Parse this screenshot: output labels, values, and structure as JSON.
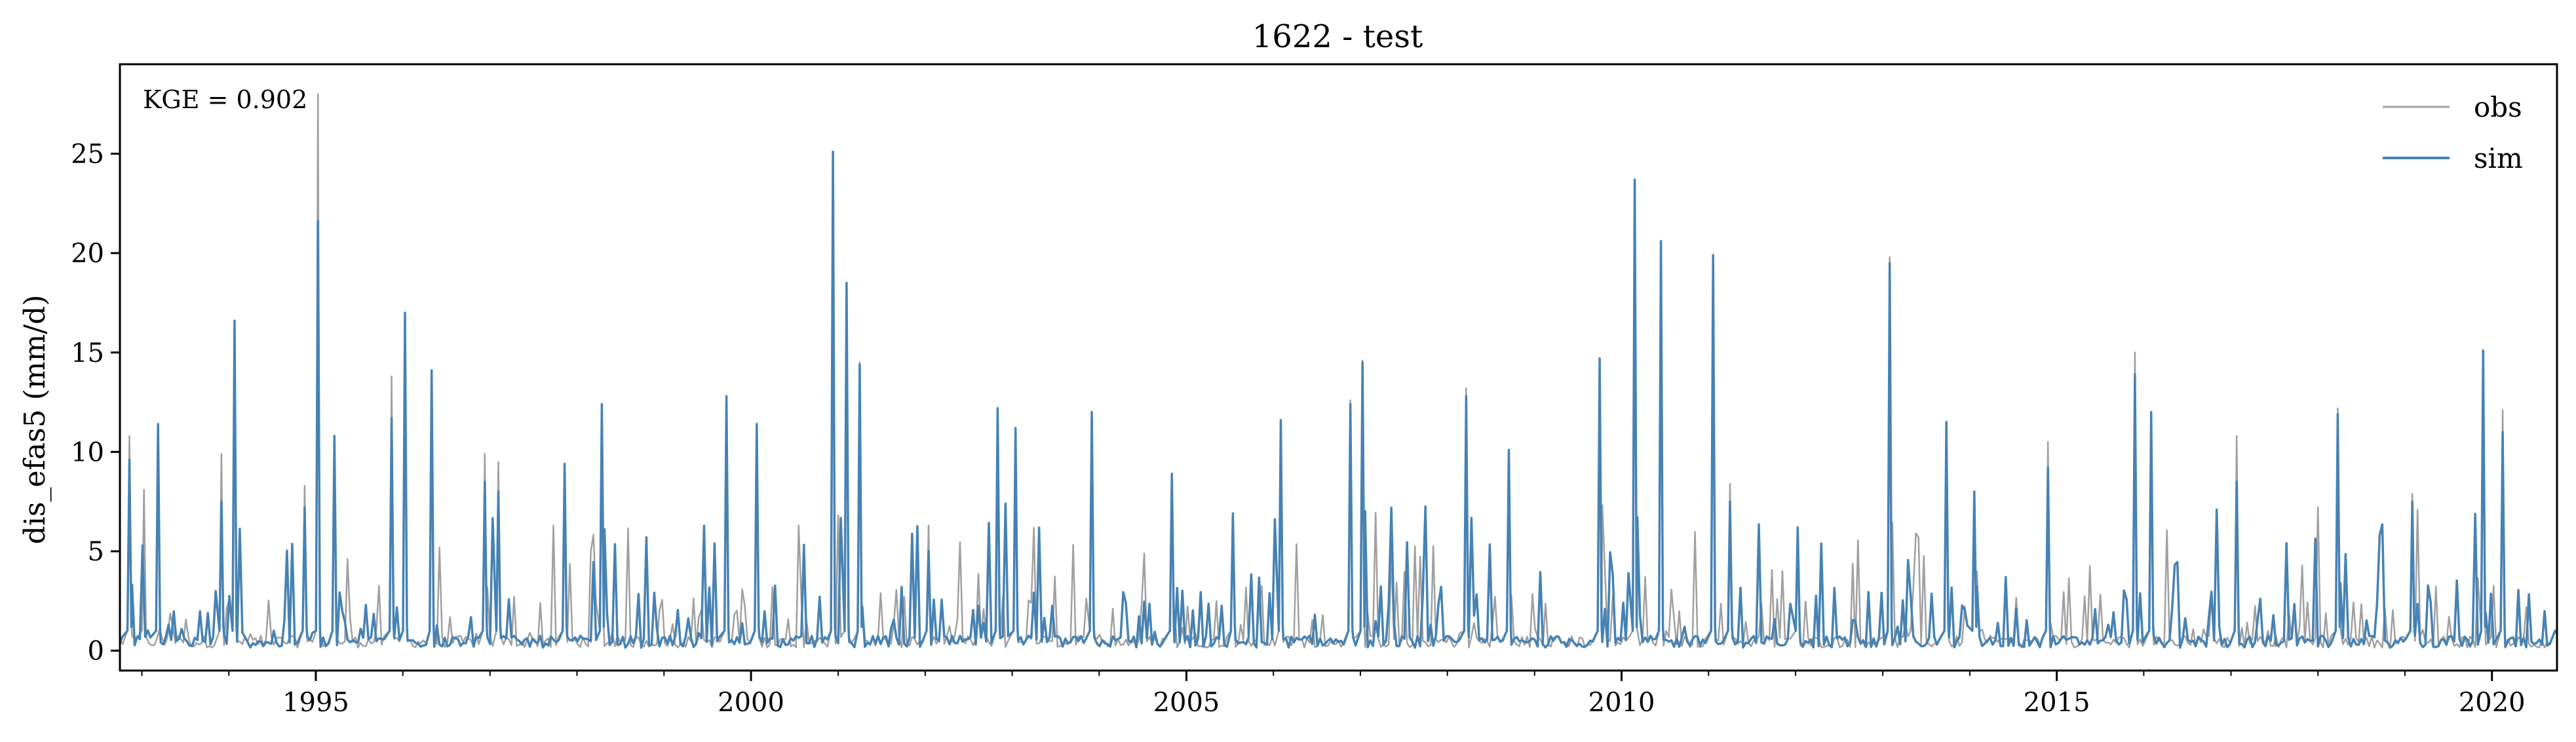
{
  "chart_data": {
    "type": "line",
    "title": "1622 - test",
    "xlabel": "",
    "ylabel": "dis_efas5 (mm/d)",
    "x_range": [
      "1992-10-01",
      "2020-09-30"
    ],
    "ylim": [
      -1,
      29.5
    ],
    "xticks": [
      "1995",
      "2000",
      "2005",
      "2010",
      "2015",
      "2020"
    ],
    "yticks": [
      0,
      5,
      10,
      15,
      20,
      25
    ],
    "grid": false,
    "legend_position": "top-right",
    "annotation": "KGE = 0.902",
    "series": [
      {
        "name": "obs",
        "color": "#a0a0a0",
        "points": [
          [
            "1992-10-01",
            0.5
          ],
          [
            "1992-11-10",
            10.8
          ],
          [
            "1993-01-10",
            8.1
          ],
          [
            "1993-12-01",
            9.9
          ],
          [
            "1994-01-25",
            16.5
          ],
          [
            "1994-11-15",
            8.3
          ],
          [
            "1995-01-10",
            28.0
          ],
          [
            "1995-03-20",
            10.8
          ],
          [
            "1995-11-15",
            13.8
          ],
          [
            "1996-01-10",
            16.9
          ],
          [
            "1996-05-01",
            14.1
          ],
          [
            "1996-12-10",
            9.9
          ],
          [
            "1997-02-05",
            9.5
          ],
          [
            "1997-11-10",
            9.4
          ],
          [
            "1998-04-15",
            12.4
          ],
          [
            "1999-09-20",
            12.8
          ],
          [
            "2000-01-25",
            11.4
          ],
          [
            "2000-12-10",
            25.0
          ],
          [
            "2001-02-05",
            18.5
          ],
          [
            "2001-04-01",
            14.5
          ],
          [
            "2002-01-15",
            6.3
          ],
          [
            "2002-11-01",
            12.2
          ],
          [
            "2003-01-15",
            11.2
          ],
          [
            "2003-12-01",
            12.0
          ],
          [
            "2004-11-01",
            8.9
          ],
          [
            "2005-07-15",
            6.9
          ],
          [
            "2006-02-01",
            11.6
          ],
          [
            "2006-11-20",
            12.6
          ],
          [
            "2007-01-10",
            14.6
          ],
          [
            "2008-03-20",
            13.2
          ],
          [
            "2008-09-15",
            10.1
          ],
          [
            "2009-10-01",
            14.7
          ],
          [
            "2010-02-25",
            23.6
          ],
          [
            "2010-06-15",
            20.6
          ],
          [
            "2011-01-20",
            19.9
          ],
          [
            "2011-04-01",
            8.4
          ],
          [
            "2012-01-10",
            6.2
          ],
          [
            "2013-01-30",
            19.8
          ],
          [
            "2013-09-25",
            11.5
          ],
          [
            "2014-01-20",
            8.0
          ],
          [
            "2014-11-25",
            10.5
          ],
          [
            "2015-11-25",
            15.0
          ],
          [
            "2016-02-01",
            12.0
          ],
          [
            "2017-01-25",
            10.8
          ],
          [
            "2018-03-25",
            12.2
          ],
          [
            "2019-02-01",
            7.9
          ],
          [
            "2019-11-25",
            15.1
          ],
          [
            "2020-02-15",
            12.1
          ],
          [
            "2020-09-30",
            0.8
          ]
        ]
      },
      {
        "name": "sim",
        "color": "#4682b4",
        "points": [
          [
            "1992-10-01",
            0.4
          ],
          [
            "1992-11-10",
            9.6
          ],
          [
            "1993-03-10",
            11.4
          ],
          [
            "1993-12-01",
            7.5
          ],
          [
            "1994-01-25",
            16.6
          ],
          [
            "1994-11-15",
            7.2
          ],
          [
            "1995-01-10",
            21.6
          ],
          [
            "1995-03-20",
            10.8
          ],
          [
            "1995-11-15",
            11.7
          ],
          [
            "1996-01-10",
            17.0
          ],
          [
            "1996-05-01",
            14.1
          ],
          [
            "1996-12-10",
            8.5
          ],
          [
            "1997-02-05",
            8.0
          ],
          [
            "1997-11-10",
            9.4
          ],
          [
            "1998-04-15",
            12.4
          ],
          [
            "1999-09-20",
            12.8
          ],
          [
            "2000-01-25",
            11.4
          ],
          [
            "2000-12-10",
            25.1
          ],
          [
            "2001-02-05",
            18.5
          ],
          [
            "2001-04-01",
            14.4
          ],
          [
            "2002-01-15",
            5.0
          ],
          [
            "2002-11-01",
            12.2
          ],
          [
            "2003-01-15",
            11.2
          ],
          [
            "2003-12-01",
            12.0
          ],
          [
            "2004-11-01",
            8.9
          ],
          [
            "2005-07-15",
            6.9
          ],
          [
            "2006-02-01",
            11.6
          ],
          [
            "2006-11-20",
            12.4
          ],
          [
            "2007-01-10",
            14.5
          ],
          [
            "2008-03-20",
            12.8
          ],
          [
            "2008-09-15",
            10.1
          ],
          [
            "2009-10-01",
            14.7
          ],
          [
            "2010-02-25",
            23.7
          ],
          [
            "2010-06-15",
            20.6
          ],
          [
            "2011-01-20",
            19.9
          ],
          [
            "2011-04-01",
            7.5
          ],
          [
            "2012-01-10",
            6.2
          ],
          [
            "2013-01-30",
            19.5
          ],
          [
            "2013-09-25",
            11.5
          ],
          [
            "2014-01-20",
            8.0
          ],
          [
            "2014-11-25",
            9.2
          ],
          [
            "2015-11-25",
            13.9
          ],
          [
            "2016-02-01",
            12.0
          ],
          [
            "2017-01-25",
            8.5
          ],
          [
            "2018-03-25",
            11.9
          ],
          [
            "2019-02-01",
            7.5
          ],
          [
            "2019-11-25",
            15.1
          ],
          [
            "2020-02-15",
            11.0
          ],
          [
            "2020-09-30",
            0.9
          ]
        ]
      }
    ]
  }
}
